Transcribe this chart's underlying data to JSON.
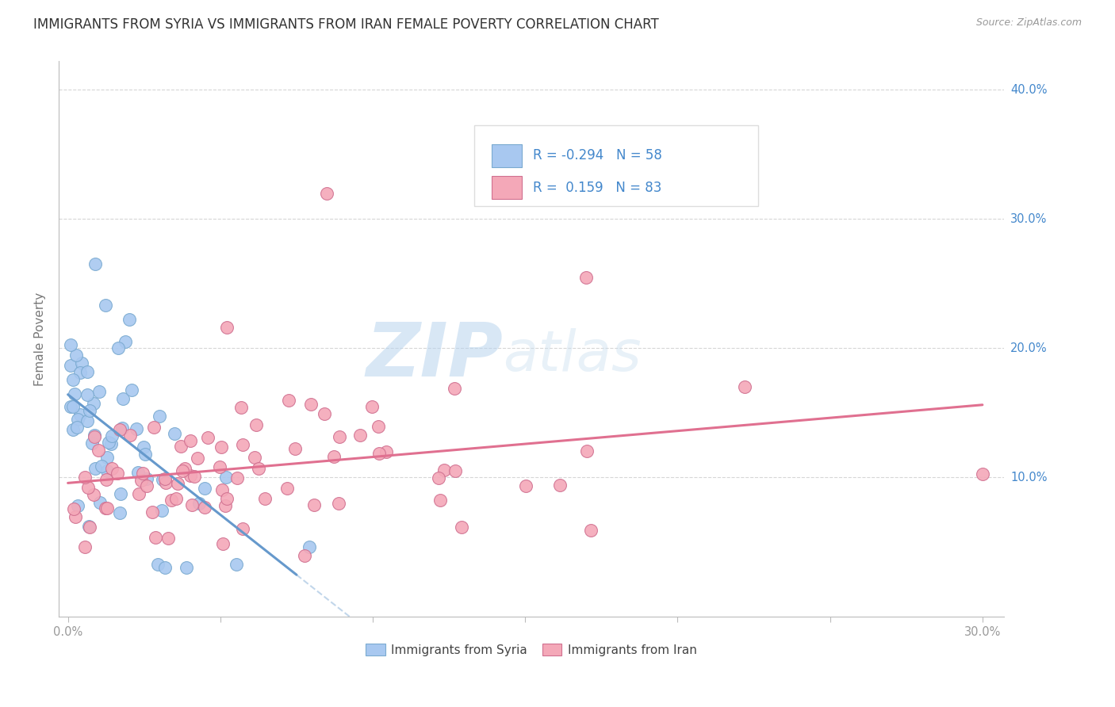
{
  "title": "IMMIGRANTS FROM SYRIA VS IMMIGRANTS FROM IRAN FEMALE POVERTY CORRELATION CHART",
  "source": "Source: ZipAtlas.com",
  "ylabel": "Female Poverty",
  "legend_labels": [
    "Immigrants from Syria",
    "Immigrants from Iran"
  ],
  "r_syria": -0.294,
  "n_syria": 58,
  "r_iran": 0.159,
  "n_iran": 83,
  "color_syria": "#a8c8f0",
  "color_iran": "#f4a8b8",
  "color_syria_edge": "#7aaad0",
  "color_iran_edge": "#d07090",
  "color_syria_line": "#6699cc",
  "color_iran_line": "#e07090",
  "color_blue": "#4488cc",
  "background_color": "#ffffff",
  "watermark_zip": "ZIP",
  "watermark_atlas": "atlas",
  "xlim": [
    0.0,
    0.3
  ],
  "ylim": [
    0.0,
    0.42
  ],
  "x_ticks": [
    0.0,
    0.05,
    0.1,
    0.15,
    0.2,
    0.25,
    0.3
  ],
  "y_ticks": [
    0.1,
    0.2,
    0.3,
    0.4
  ],
  "y_tick_labels": [
    "10.0%",
    "20.0%",
    "30.0%",
    "40.0%"
  ],
  "x_tick_labels_shown": [
    "0.0%",
    "",
    "",
    "",
    "",
    "",
    "30.0%"
  ]
}
